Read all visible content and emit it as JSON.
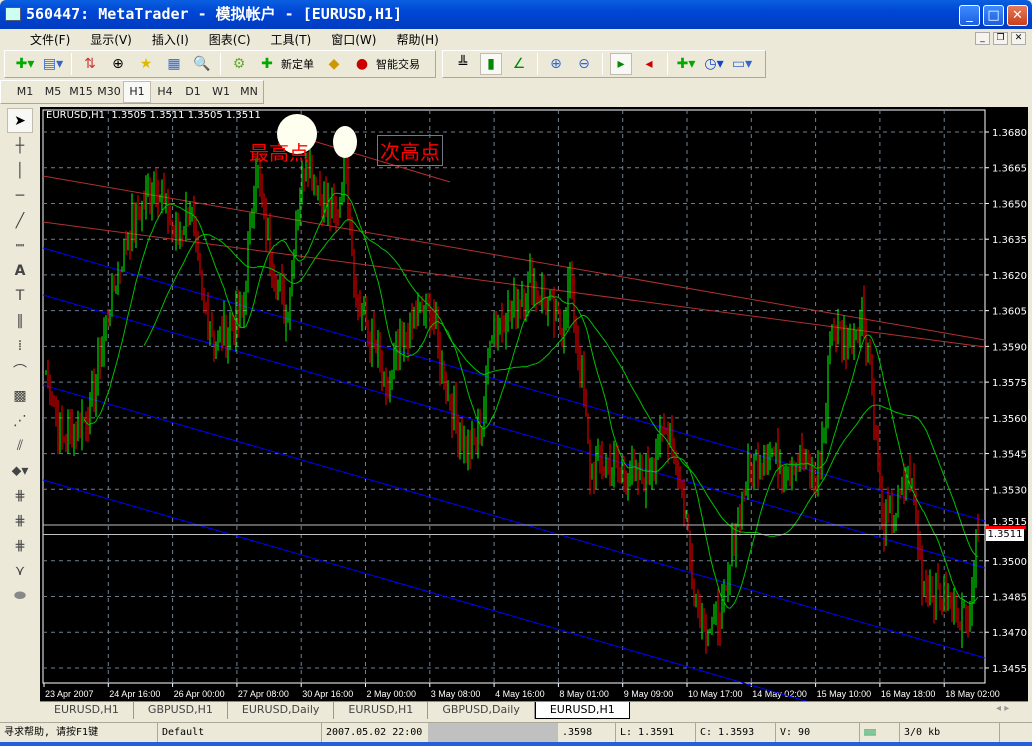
{
  "window": {
    "title": "560447: MetaTrader - 模拟帐户 - [EURUSD,H1]"
  },
  "menu": [
    "文件(F)",
    "显示(V)",
    "插入(I)",
    "图表(C)",
    "工具(T)",
    "窗口(W)",
    "帮助(H)"
  ],
  "toolbar": {
    "new_order": "新定单",
    "expert_advisors": "智能交易"
  },
  "timeframes": [
    "M1",
    "M5",
    "M15",
    "M30",
    "H1",
    "H4",
    "D1",
    "W1",
    "MN"
  ],
  "active_timeframe": "H1",
  "chart": {
    "header": "EURUSD,H1  1.3505 1.3511 1.3505 1.3511",
    "annotation_high": "最高点",
    "annotation_second_high": "次高点",
    "current_price": "1.3511",
    "colors": {
      "bull": "#00ff00",
      "bear": "#ff0000",
      "ma": "#00c000",
      "channel_blue": "#0000ff",
      "channel_red": "#b03030",
      "grid": "#708090"
    }
  },
  "chart_data": {
    "type": "candlestick",
    "symbol": "EURUSD",
    "timeframe": "H1",
    "ylim": [
      1.345,
      1.369
    ],
    "y_ticks": [
      "1.3680",
      "1.3665",
      "1.3650",
      "1.3635",
      "1.3620",
      "1.3605",
      "1.3590",
      "1.3575",
      "1.3560",
      "1.3545",
      "1.3530",
      "1.3515",
      "1.3500",
      "1.3485",
      "1.3470",
      "1.3455"
    ],
    "x_ticks": [
      "23 Apr 2007",
      "24 Apr 16:00",
      "26 Apr 00:00",
      "27 Apr 08:00",
      "30 Apr 16:00",
      "2 May 00:00",
      "3 May 08:00",
      "4 May 16:00",
      "8 May 01:00",
      "9 May 09:00",
      "10 May 17:00",
      "14 May 02:00",
      "15 May 10:00",
      "16 May 18:00",
      "18 May 02:00"
    ],
    "close_path": [
      [
        0,
        1.358
      ],
      [
        8,
        1.3551
      ],
      [
        22,
        1.3563
      ],
      [
        32,
        1.3609
      ],
      [
        42,
        1.3639
      ],
      [
        55,
        1.366
      ],
      [
        65,
        1.3635
      ],
      [
        72,
        1.3649
      ],
      [
        78,
        1.3609
      ],
      [
        85,
        1.3593
      ],
      [
        98,
        1.3601
      ],
      [
        105,
        1.3668
      ],
      [
        110,
        1.3639
      ],
      [
        120,
        1.3601
      ],
      [
        125,
        1.3643
      ],
      [
        130,
        1.3672
      ],
      [
        138,
        1.3651
      ],
      [
        145,
        1.3643
      ],
      [
        150,
        1.3668
      ],
      [
        155,
        1.3609
      ],
      [
        165,
        1.3588
      ],
      [
        170,
        1.3567
      ],
      [
        175,
        1.3584
      ],
      [
        182,
        1.3597
      ],
      [
        192,
        1.3609
      ],
      [
        200,
        1.3572
      ],
      [
        210,
        1.3546
      ],
      [
        218,
        1.3555
      ],
      [
        222,
        1.3597
      ],
      [
        232,
        1.3605
      ],
      [
        242,
        1.3618
      ],
      [
        250,
        1.3609
      ],
      [
        258,
        1.3597
      ],
      [
        262,
        1.3618
      ],
      [
        268,
        1.3576
      ],
      [
        272,
        1.3538
      ],
      [
        278,
        1.3542
      ],
      [
        288,
        1.3538
      ],
      [
        298,
        1.3534
      ],
      [
        308,
        1.3551
      ],
      [
        312,
        1.3555
      ],
      [
        320,
        1.3517
      ],
      [
        325,
        1.3483
      ],
      [
        332,
        1.3471
      ],
      [
        340,
        1.3483
      ],
      [
        345,
        1.3517
      ],
      [
        350,
        1.3534
      ],
      [
        358,
        1.3546
      ],
      [
        368,
        1.3542
      ],
      [
        378,
        1.3542
      ],
      [
        385,
        1.3534
      ],
      [
        390,
        1.3559
      ],
      [
        392,
        1.3597
      ],
      [
        402,
        1.3593
      ],
      [
        408,
        1.3605
      ],
      [
        412,
        1.3584
      ],
      [
        418,
        1.3517
      ],
      [
        425,
        1.3521
      ],
      [
        432,
        1.3538
      ],
      [
        438,
        1.3492
      ],
      [
        445,
        1.3488
      ],
      [
        452,
        1.3483
      ],
      [
        460,
        1.3475
      ],
      [
        466,
        1.3511
      ]
    ],
    "bid": 1.3511,
    "ask": 1.3515,
    "moving_averages": [
      20,
      50
    ],
    "bars_visible": 467
  },
  "tabs": [
    "EURUSD,H1",
    "GBPUSD,H1",
    "EURUSD,Daily",
    "EURUSD,H1",
    "GBPUSD,Daily",
    "EURUSD,H1"
  ],
  "active_tab": 5,
  "status": {
    "help": "寻求帮助, 请按F1键",
    "profile": "Default",
    "time": "2007.05.02 22:00",
    "high": ".3598",
    "low": "L: 1.3591",
    "close": "C: 1.3593",
    "volume": "V: 90",
    "traffic": "3/0 kb"
  }
}
